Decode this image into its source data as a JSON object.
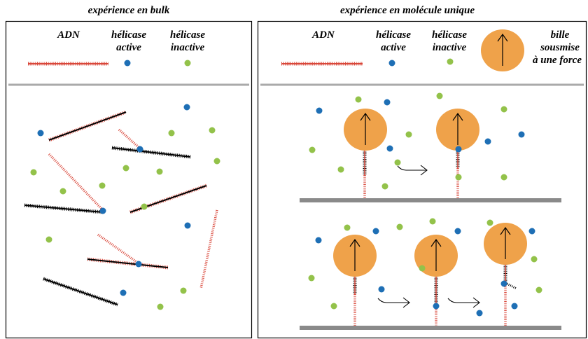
{
  "titles": {
    "bulk": "expérience en bulk",
    "single": "expérience en molécule unique"
  },
  "bulk_legend": {
    "dna": "ADN",
    "active": [
      "hélicase",
      "active"
    ],
    "inactive": [
      "hélicase",
      "inactive"
    ]
  },
  "single_legend": {
    "dna": "ADN",
    "active": [
      "hélicase",
      "active"
    ],
    "inactive": [
      "hélicase",
      "inactive"
    ],
    "bead": [
      "bille",
      "sousmise",
      "à une force"
    ]
  }
}
